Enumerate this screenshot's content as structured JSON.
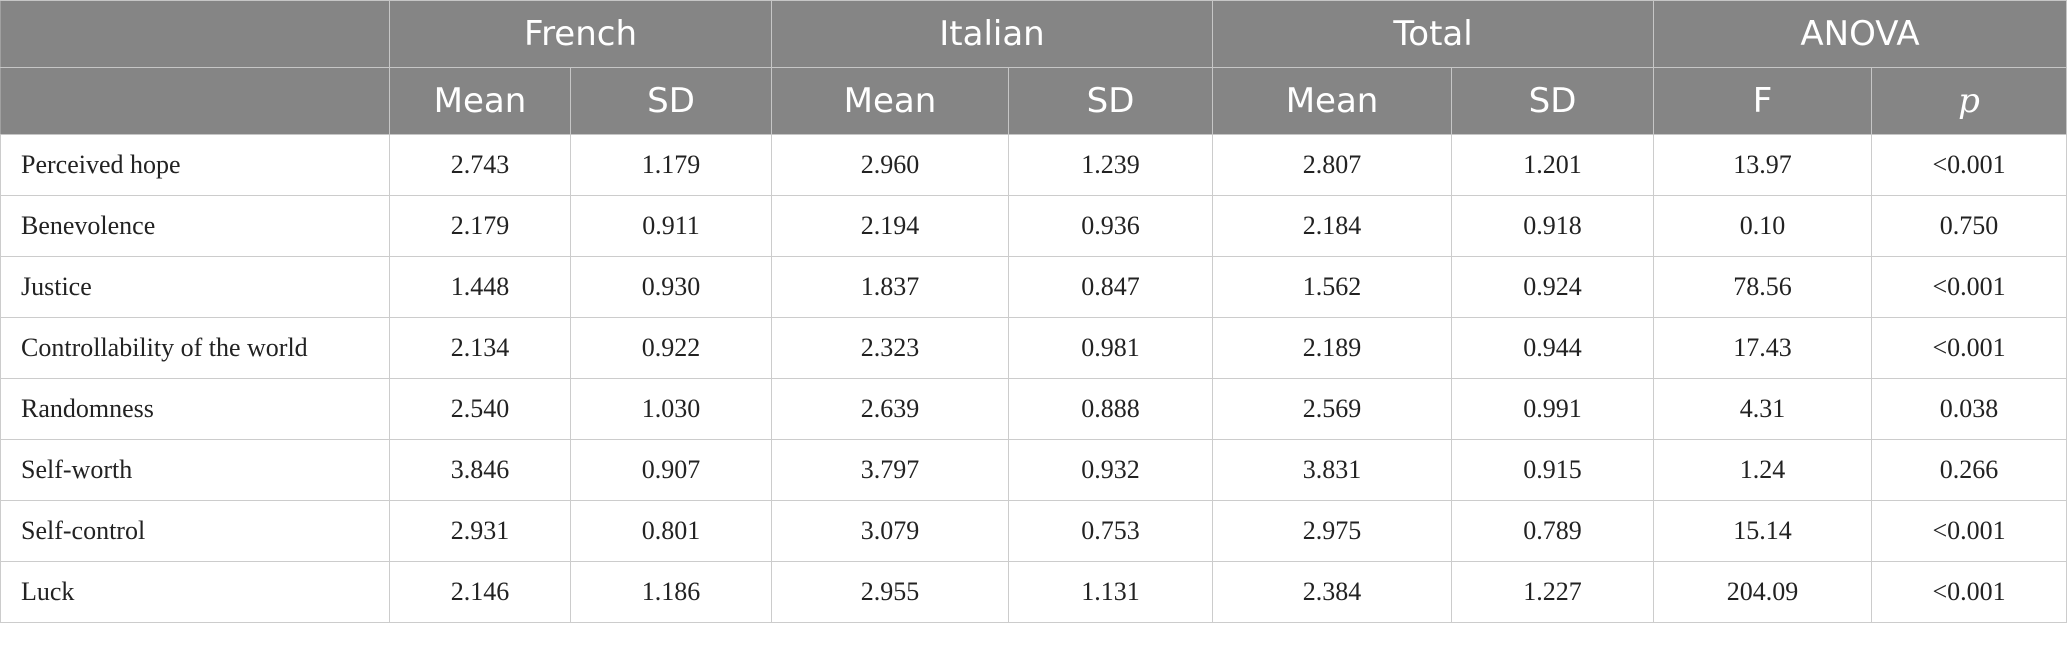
{
  "header": {
    "groups": [
      "French",
      "Italian",
      "Total",
      "ANOVA"
    ],
    "subheaders": [
      "Mean",
      "SD",
      "Mean",
      "SD",
      "Mean",
      "SD",
      "F",
      "p"
    ]
  },
  "rows": [
    {
      "label": "Perceived hope",
      "cells": [
        "2.743",
        "1.179",
        "2.960",
        "1.239",
        "2.807",
        "1.201",
        "13.97",
        "<0.001"
      ]
    },
    {
      "label": "Benevolence",
      "cells": [
        "2.179",
        "0.911",
        "2.194",
        "0.936",
        "2.184",
        "0.918",
        "0.10",
        "0.750"
      ]
    },
    {
      "label": "Justice",
      "cells": [
        "1.448",
        "0.930",
        "1.837",
        "0.847",
        "1.562",
        "0.924",
        "78.56",
        "<0.001"
      ]
    },
    {
      "label": "Controllability of the world",
      "cells": [
        "2.134",
        "0.922",
        "2.323",
        "0.981",
        "2.189",
        "0.944",
        "17.43",
        "<0.001"
      ]
    },
    {
      "label": "Randomness",
      "cells": [
        "2.540",
        "1.030",
        "2.639",
        "0.888",
        "2.569",
        "0.991",
        "4.31",
        "0.038"
      ]
    },
    {
      "label": "Self-worth",
      "cells": [
        "3.846",
        "0.907",
        "3.797",
        "0.932",
        "3.831",
        "0.915",
        "1.24",
        "0.266"
      ]
    },
    {
      "label": "Self-control",
      "cells": [
        "2.931",
        "0.801",
        "3.079",
        "0.753",
        "2.975",
        "0.789",
        "15.14",
        "<0.001"
      ]
    },
    {
      "label": "Luck",
      "cells": [
        "2.146",
        "1.186",
        "2.955",
        "1.131",
        "2.384",
        "1.227",
        "204.09",
        "<0.001"
      ]
    }
  ]
}
